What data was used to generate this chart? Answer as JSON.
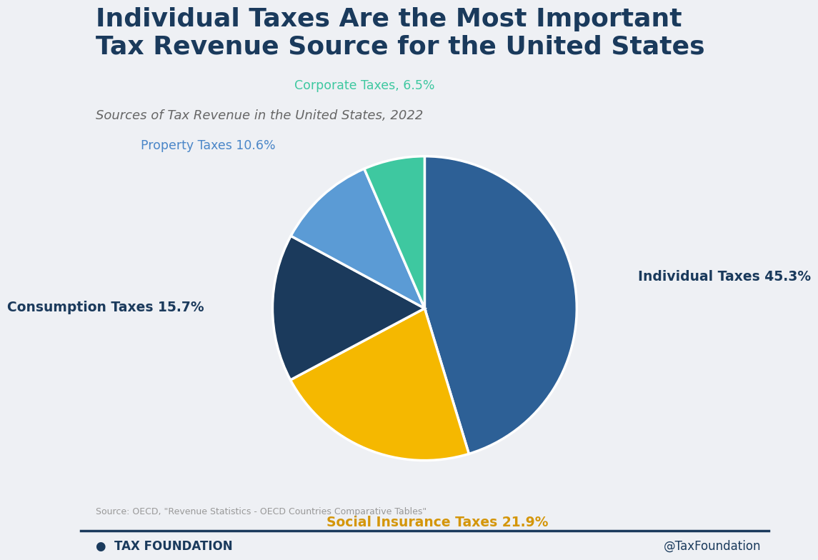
{
  "title_line1": "Individual Taxes Are the Most Important",
  "title_line2": "Tax Revenue Source for the United States",
  "subtitle": "Sources of Tax Revenue in the United States, 2022",
  "source_text": "Source: OECD, \"Revenue Statistics - OECD Countries Comparative Tables\"",
  "footer_left": "TAX FOUNDATION",
  "footer_right": "@TaxFoundation",
  "slices": [
    {
      "label": "Individual Taxes",
      "pct": 45.3,
      "color": "#2d6096",
      "label_color": "#1a3a5c",
      "bold": true
    },
    {
      "label": "Social Insurance Taxes",
      "pct": 21.9,
      "color": "#f5b800",
      "label_color": "#d4960a",
      "bold": true
    },
    {
      "label": "Consumption Taxes",
      "pct": 15.7,
      "color": "#1b3a5c",
      "label_color": "#1b3a5c",
      "bold": true
    },
    {
      "label": "Property Taxes",
      "pct": 10.6,
      "color": "#5b9bd5",
      "label_color": "#4a86c8",
      "bold": false
    },
    {
      "label": "Corporate Taxes,",
      "pct": 6.5,
      "color": "#3ec8a0",
      "label_color": "#3ec8a0",
      "bold": false
    }
  ],
  "background_color": "#eef0f4",
  "title_color": "#1a3a5c",
  "subtitle_color": "#666666",
  "footer_line_color": "#1a3a5c",
  "source_color": "#999999"
}
